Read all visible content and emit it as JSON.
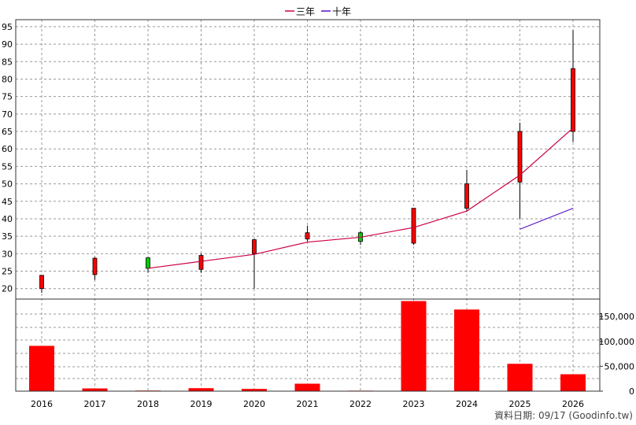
{
  "chart_data": {
    "type": "candlestick",
    "categories": [
      "2016",
      "2017",
      "2018",
      "2019",
      "2020",
      "2021",
      "2022",
      "2023",
      "2024",
      "2025",
      "2026"
    ],
    "price_axis": {
      "ylim": [
        17,
        97
      ],
      "ticks": [
        20,
        25,
        30,
        35,
        40,
        45,
        50,
        55,
        60,
        65,
        70,
        75,
        80,
        85,
        90,
        95
      ]
    },
    "volume_axis": {
      "ylim": [
        0,
        185000
      ],
      "ticks": [
        0,
        50000,
        100000,
        150000
      ],
      "tick_labels": [
        "0",
        "50,000",
        "100,000",
        "150,000"
      ]
    },
    "candles": [
      {
        "year": "2016",
        "open": 20,
        "high": 23.8,
        "low": 18.8,
        "close": 23.8,
        "color": "#ff0000"
      },
      {
        "year": "2017",
        "open": 24,
        "high": 29,
        "low": 22.5,
        "close": 28.7,
        "color": "#ff0000"
      },
      {
        "year": "2018",
        "open": 28.8,
        "high": 29,
        "low": 24.5,
        "close": 25.8,
        "color": "#00cc00"
      },
      {
        "year": "2019",
        "open": 25.5,
        "high": 30,
        "low": 24.5,
        "close": 29.5,
        "color": "#ff0000"
      },
      {
        "year": "2020",
        "open": 30,
        "high": 34.2,
        "low": 20,
        "close": 34,
        "color": "#ff0000"
      },
      {
        "year": "2021",
        "open": 34.2,
        "high": 38,
        "low": 33.5,
        "close": 36,
        "color": "#ff0000"
      },
      {
        "year": "2022",
        "open": 36,
        "high": 36.5,
        "low": 32.5,
        "close": 33.5,
        "color": "#00cc00"
      },
      {
        "year": "2023",
        "open": 33,
        "high": 43,
        "low": 32.5,
        "close": 43,
        "color": "#ff0000"
      },
      {
        "year": "2024",
        "open": 43,
        "high": 54,
        "low": 42,
        "close": 50,
        "color": "#ff0000"
      },
      {
        "year": "2025",
        "open": 50.5,
        "high": 67.5,
        "low": 40,
        "close": 65,
        "color": "#ff0000"
      },
      {
        "year": "2026",
        "open": 65,
        "high": 94,
        "low": 62,
        "close": 83,
        "color": "#ff0000"
      }
    ],
    "series": [
      {
        "name": "三年",
        "color": "#cc0044",
        "points": [
          [
            "2018",
            25.8
          ],
          [
            "2019",
            27.8
          ],
          [
            "2020",
            29.8
          ],
          [
            "2021",
            33.3
          ],
          [
            "2022",
            34.7
          ],
          [
            "2023",
            37.5
          ],
          [
            "2024",
            42.2
          ],
          [
            "2025",
            52.5
          ],
          [
            "2026",
            66
          ]
        ]
      },
      {
        "name": "十年",
        "color": "#5511cc",
        "points": [
          [
            "2025",
            37
          ],
          [
            "2026",
            43
          ]
        ]
      }
    ],
    "volume": [
      {
        "year": "2016",
        "value": 91000
      },
      {
        "year": "2017",
        "value": 5500
      },
      {
        "year": "2018",
        "value": 1200
      },
      {
        "year": "2019",
        "value": 6000
      },
      {
        "year": "2020",
        "value": 4500
      },
      {
        "year": "2021",
        "value": 15000
      },
      {
        "year": "2022",
        "value": 1000
      },
      {
        "year": "2023",
        "value": 181000
      },
      {
        "year": "2024",
        "value": 164000
      },
      {
        "year": "2025",
        "value": 55000
      },
      {
        "year": "2026",
        "value": 34000
      }
    ],
    "volume_color": "#ff0000",
    "grid": true,
    "legend_placement": "top-center"
  },
  "footer": {
    "text": "資料日期: 09/17  (Goodinfo.tw)"
  }
}
